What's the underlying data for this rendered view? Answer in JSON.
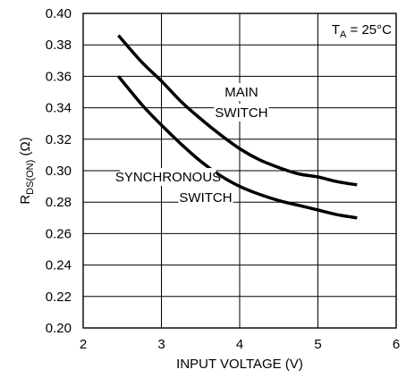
{
  "chart_data": {
    "type": "line",
    "title": "",
    "xlabel": "INPUT VOLTAGE (V)",
    "ylabel": {
      "main": "R",
      "sub": "DS(ON)",
      "rest": " (Ω)"
    },
    "xlim": [
      2,
      6
    ],
    "ylim": [
      0.2,
      0.4
    ],
    "x_ticks": [
      "2",
      "3",
      "4",
      "5",
      "6"
    ],
    "y_ticks": [
      "0.20",
      "0.22",
      "0.24",
      "0.26",
      "0.28",
      "0.30",
      "0.32",
      "0.34",
      "0.36",
      "0.38",
      "0.40"
    ],
    "grid": true,
    "annotation": {
      "prefix": "T",
      "sub": "A",
      "suffix": " = 25°C"
    },
    "series": [
      {
        "label_lines": [
          "MAIN",
          "SWITCH"
        ],
        "x": [
          2.45,
          2.75,
          3.0,
          3.25,
          3.5,
          3.75,
          4.0,
          4.25,
          4.5,
          4.75,
          5.0,
          5.25,
          5.5
        ],
        "y": [
          0.386,
          0.369,
          0.357,
          0.344,
          0.333,
          0.323,
          0.314,
          0.307,
          0.302,
          0.298,
          0.296,
          0.293,
          0.291
        ]
      },
      {
        "label_lines": [
          "SYNCHRONOUS",
          "SWITCH"
        ],
        "x": [
          2.45,
          2.75,
          3.0,
          3.25,
          3.5,
          3.75,
          4.0,
          4.25,
          4.5,
          4.75,
          5.0,
          5.25,
          5.5
        ],
        "y": [
          0.36,
          0.342,
          0.329,
          0.317,
          0.306,
          0.297,
          0.29,
          0.285,
          0.281,
          0.278,
          0.275,
          0.272,
          0.27
        ]
      }
    ]
  }
}
